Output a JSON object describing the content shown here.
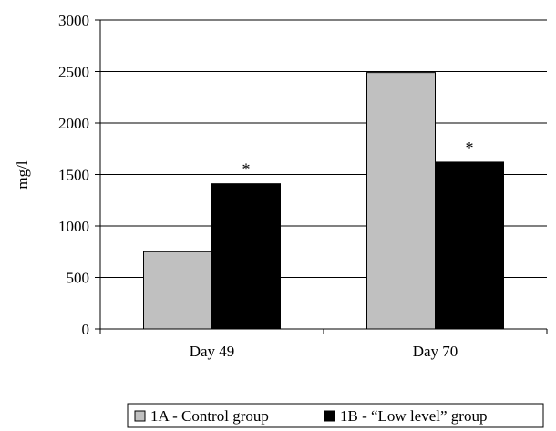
{
  "chart_data": {
    "type": "bar",
    "categories": [
      "Day 49",
      "Day 70"
    ],
    "series": [
      {
        "name": "1A - Control group",
        "values": [
          750,
          2490
        ],
        "color": "#c0c0c0"
      },
      {
        "name": "1B - “Low level”  group",
        "values": [
          1410,
          1620
        ],
        "color": "#000000"
      }
    ],
    "ylabel": "mg/l",
    "xlabel": "",
    "ylim": [
      0,
      3000
    ],
    "yticks": [
      0,
      500,
      1000,
      1500,
      2000,
      2500,
      3000
    ],
    "grid": true,
    "legend_position": "bottom-right",
    "annotations": [
      {
        "text": "*",
        "category": "Day 49",
        "series": "1B - “Low level”  group"
      },
      {
        "text": "*",
        "category": "Day 70",
        "series": "1B - “Low level”  group"
      }
    ]
  }
}
